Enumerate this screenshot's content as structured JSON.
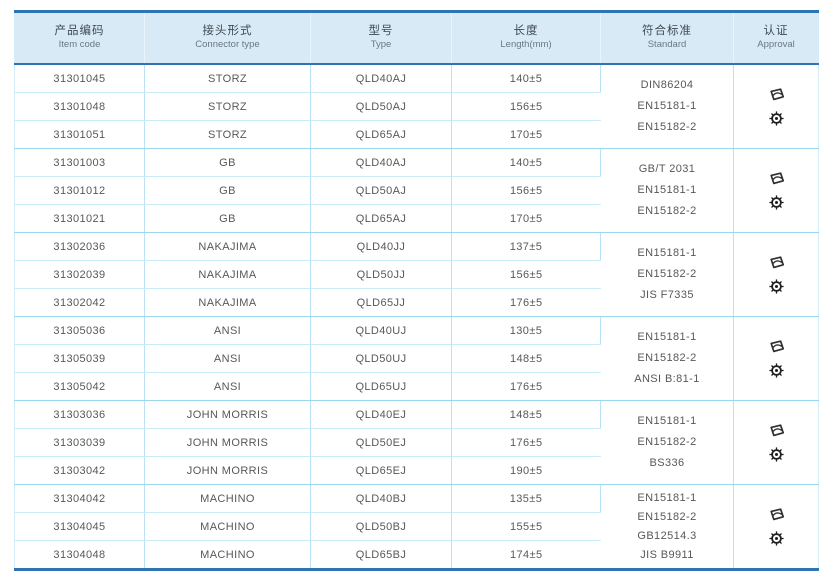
{
  "colors": {
    "accent_border": "#2e74b5",
    "header_bg": "#d9eaf7",
    "grid_line": "#b9e2f4",
    "group_line": "#9bd6ef",
    "text": "#585858"
  },
  "table": {
    "columns": [
      {
        "zh": "产品编码",
        "en": "Item code"
      },
      {
        "zh": "接头形式",
        "en": "Connector type"
      },
      {
        "zh": "型号",
        "en": "Type"
      },
      {
        "zh": "长度",
        "en": "Length(mm)"
      },
      {
        "zh": "符合标准",
        "en": "Standard"
      },
      {
        "zh": "认证",
        "en": "Approval"
      }
    ],
    "groups": [
      {
        "rows": [
          {
            "item_code": "31301045",
            "connector_type": "STORZ",
            "type": "QLD40AJ",
            "length": "140±5"
          },
          {
            "item_code": "31301048",
            "connector_type": "STORZ",
            "type": "QLD50AJ",
            "length": "156±5"
          },
          {
            "item_code": "31301051",
            "connector_type": "STORZ",
            "type": "QLD65AJ",
            "length": "170±5"
          }
        ],
        "standards": [
          "DIN86204",
          "EN15181-1",
          "EN15182-2"
        ],
        "approval_icons": [
          "type-approval-mark",
          "wheel-mark"
        ]
      },
      {
        "rows": [
          {
            "item_code": "31301003",
            "connector_type": "GB",
            "type": "QLD40AJ",
            "length": "140±5"
          },
          {
            "item_code": "31301012",
            "connector_type": "GB",
            "type": "QLD50AJ",
            "length": "156±5"
          },
          {
            "item_code": "31301021",
            "connector_type": "GB",
            "type": "QLD65AJ",
            "length": "170±5"
          }
        ],
        "standards": [
          "GB/T 2031",
          "EN15181-1",
          "EN15182-2"
        ],
        "approval_icons": [
          "type-approval-mark",
          "wheel-mark"
        ]
      },
      {
        "rows": [
          {
            "item_code": "31302036",
            "connector_type": "NAKAJIMA",
            "type": "QLD40JJ",
            "length": "137±5"
          },
          {
            "item_code": "31302039",
            "connector_type": "NAKAJIMA",
            "type": "QLD50JJ",
            "length": "156±5"
          },
          {
            "item_code": "31302042",
            "connector_type": "NAKAJIMA",
            "type": "QLD65JJ",
            "length": "176±5"
          }
        ],
        "standards": [
          "EN15181-1",
          "EN15182-2",
          "JIS F7335"
        ],
        "approval_icons": [
          "type-approval-mark",
          "wheel-mark"
        ]
      },
      {
        "rows": [
          {
            "item_code": "31305036",
            "connector_type": "ANSI",
            "type": "QLD40UJ",
            "length": "130±5"
          },
          {
            "item_code": "31305039",
            "connector_type": "ANSI",
            "type": "QLD50UJ",
            "length": "148±5"
          },
          {
            "item_code": "31305042",
            "connector_type": "ANSI",
            "type": "QLD65UJ",
            "length": "176±5"
          }
        ],
        "standards": [
          "EN15181-1",
          "EN15182-2",
          "ANSI B:81-1"
        ],
        "approval_icons": [
          "type-approval-mark",
          "wheel-mark"
        ]
      },
      {
        "rows": [
          {
            "item_code": "31303036",
            "connector_type": "JOHN MORRIS",
            "type": "QLD40EJ",
            "length": "148±5"
          },
          {
            "item_code": "31303039",
            "connector_type": "JOHN MORRIS",
            "type": "QLD50EJ",
            "length": "176±5"
          },
          {
            "item_code": "31303042",
            "connector_type": "JOHN MORRIS",
            "type": "QLD65EJ",
            "length": "190±5"
          }
        ],
        "standards": [
          "EN15181-1",
          "EN15182-2",
          "BS336"
        ],
        "approval_icons": [
          "type-approval-mark",
          "wheel-mark"
        ]
      },
      {
        "rows": [
          {
            "item_code": "31304042",
            "connector_type": "MACHINO",
            "type": "QLD40BJ",
            "length": "135±5"
          },
          {
            "item_code": "31304045",
            "connector_type": "MACHINO",
            "type": "QLD50BJ",
            "length": "155±5"
          },
          {
            "item_code": "31304048",
            "connector_type": "MACHINO",
            "type": "QLD65BJ",
            "length": "174±5"
          }
        ],
        "standards": [
          "EN15181-1",
          "EN15182-2",
          "GB12514.3",
          "JIS B9911"
        ],
        "approval_icons": [
          "type-approval-mark",
          "wheel-mark"
        ]
      }
    ]
  }
}
